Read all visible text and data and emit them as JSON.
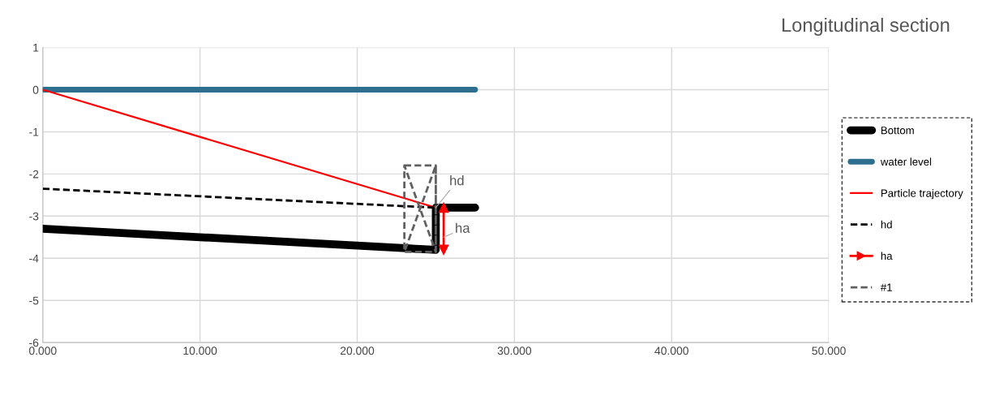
{
  "chart_data": {
    "type": "line",
    "title": "Longitudinal section",
    "series": [
      {
        "name": "Bottom",
        "color": "#000000",
        "x": [
          0,
          25,
          25,
          27.5
        ],
        "values": [
          -3.3,
          -3.8,
          -2.8,
          -2.8
        ]
      },
      {
        "name": "water level",
        "color": "#2e6e8e",
        "x": [
          0,
          27.5
        ],
        "values": [
          0,
          0
        ]
      },
      {
        "name": "Particle trajectory",
        "color": "#ff0000",
        "x": [
          0,
          25
        ],
        "values": [
          0,
          -2.8
        ]
      },
      {
        "name": "hd",
        "color": "#000000",
        "x": [
          0,
          25
        ],
        "values": [
          -2.35,
          -2.8
        ],
        "line_style": "dashed"
      },
      {
        "name": "ha",
        "color": "#ff0000",
        "x": [
          25.5,
          25.5
        ],
        "values": [
          -2.8,
          -3.8
        ],
        "marker": "triangle"
      },
      {
        "name": "#1",
        "color": "#606060",
        "x": [
          23,
          25,
          25,
          23,
          23,
          25,
          25,
          23
        ],
        "values": [
          -1.8,
          -1.8,
          -3.85,
          -3.85,
          -1.8,
          -3.85,
          -1.8,
          -3.85
        ],
        "line_style": "dashed"
      }
    ],
    "annotations": [
      {
        "text": "hd",
        "x": 25,
        "y": -2.8
      },
      {
        "text": "ha",
        "x": 25.5,
        "y": -3.5
      }
    ],
    "xlim": [
      0,
      50
    ],
    "xticks": [
      {
        "value": 0,
        "label": "0.000"
      },
      {
        "value": 10,
        "label": "10.000"
      },
      {
        "value": 20,
        "label": "20.000"
      },
      {
        "value": 30,
        "label": "30.000"
      },
      {
        "value": 40,
        "label": "40.000"
      },
      {
        "value": 50,
        "label": "50.000"
      }
    ],
    "ylim": [
      -6,
      1
    ],
    "yticks": [
      1,
      0,
      -1,
      -2,
      -3,
      -4,
      -5,
      -6
    ],
    "grid": true,
    "legend": "right"
  }
}
